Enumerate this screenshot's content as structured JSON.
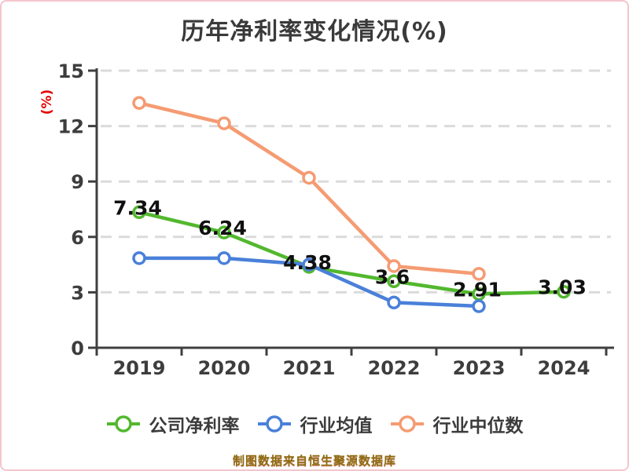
{
  "page": {
    "background": "#ffffff",
    "border_color": "#f3c6ce"
  },
  "title": "历年净利率变化情况(%)",
  "source_caption": "制图数据来自恒生聚源数据库",
  "chart_data": {
    "type": "line",
    "title": "历年净利率变化情况(%)",
    "ylabel": "(%)",
    "categories": [
      "2019",
      "2020",
      "2021",
      "2022",
      "2023",
      "2024"
    ],
    "ylim": [
      0,
      15
    ],
    "yticks": [
      0,
      3,
      6,
      9,
      12,
      15
    ],
    "grid": "horizontal-dashed",
    "legend_position": "bottom",
    "series": [
      {
        "name": "公司净利率",
        "color": "#52b82e",
        "values": [
          7.34,
          6.24,
          4.38,
          3.6,
          2.91,
          3.03
        ],
        "point_labels": [
          "7.34",
          "6.24",
          "4.38",
          "3.6",
          "2.91",
          "3.03"
        ]
      },
      {
        "name": "行业均值",
        "color": "#4a80d9",
        "values": [
          4.85,
          4.85,
          4.5,
          2.45,
          2.25,
          null
        ],
        "point_labels": null
      },
      {
        "name": "行业中位数",
        "color": "#f59b72",
        "values": [
          13.25,
          12.15,
          9.2,
          4.42,
          4.0,
          null
        ],
        "point_labels": null
      }
    ],
    "marker_fill": "#ffffff",
    "axis_color": "#3f3f3f",
    "grid_color": "#dbdbdb",
    "tick_label_color": "#3d3d3d",
    "data_label_color": "#101010",
    "ylabel_color": "#e60000"
  }
}
